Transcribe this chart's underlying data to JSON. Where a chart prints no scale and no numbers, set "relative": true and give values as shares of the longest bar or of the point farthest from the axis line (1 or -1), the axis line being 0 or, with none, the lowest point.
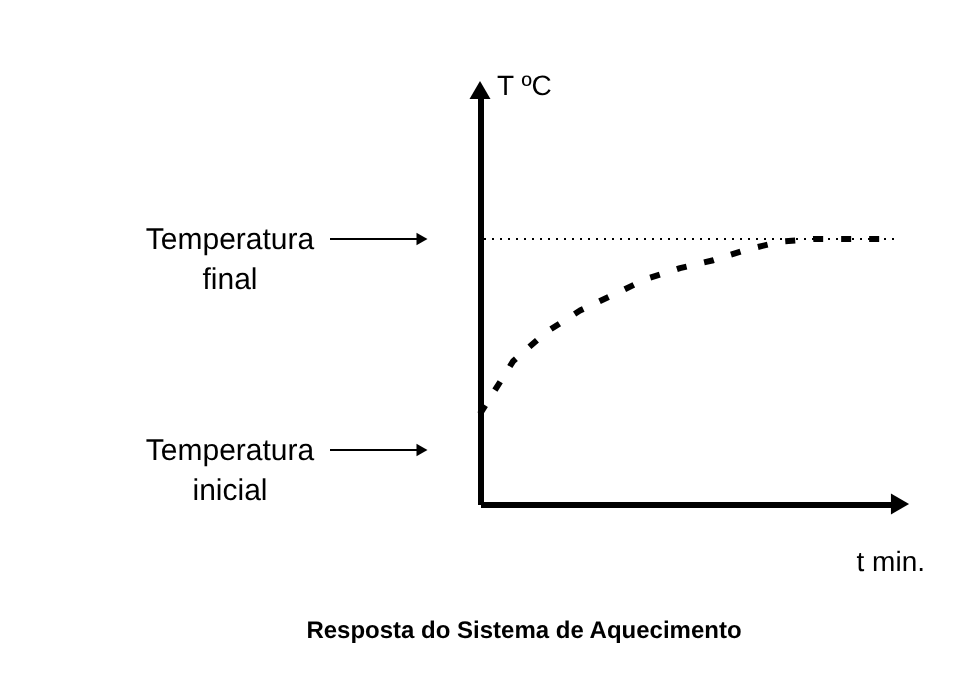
{
  "chart_data": {
    "type": "line",
    "title": "Resposta do Sistema de Aquecimento",
    "xlabel": "t min.",
    "ylabel": "T ºC",
    "relative": true,
    "categories": [
      null,
      null,
      null,
      null,
      null,
      null,
      null,
      null,
      null,
      null,
      null,
      null,
      null
    ],
    "values": [
      0.34,
      0.54,
      0.65,
      0.73,
      0.79,
      0.85,
      0.89,
      0.92,
      0.96,
      0.99,
      1,
      1,
      1
    ],
    "color": "#000000",
    "line_style": "dashed",
    "ref_lines": [
      {
        "axis": "y",
        "value": 1,
        "label": "Temperatura final",
        "line_style": "dotted",
        "color": "#000000"
      }
    ],
    "annotations": [
      "Temperatura inicial"
    ]
  }
}
